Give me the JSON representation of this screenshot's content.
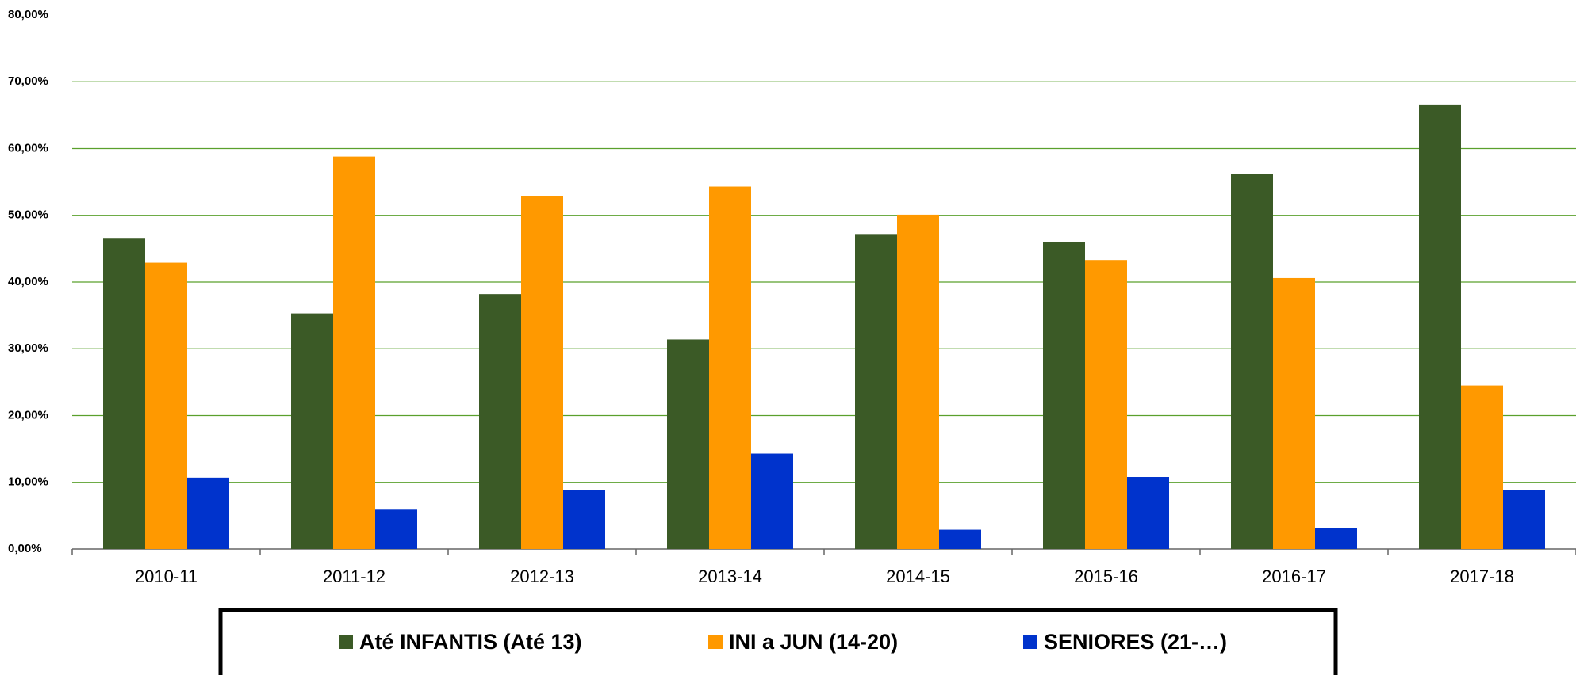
{
  "chart_data": {
    "type": "bar",
    "categories": [
      "2010-11",
      "2011-12",
      "2012-13",
      "2013-14",
      "2014-15",
      "2015-16",
      "2016-17",
      "2017-18"
    ],
    "series": [
      {
        "name": "Até INFANTIS (Até 13)",
        "color": "#3b5a26",
        "values": [
          46.5,
          35.3,
          38.2,
          31.4,
          47.2,
          46.0,
          56.2,
          66.6
        ]
      },
      {
        "name": "INI a JUN (14-20)",
        "color": "#ff9900",
        "values": [
          42.9,
          58.8,
          52.9,
          54.3,
          50.1,
          43.3,
          40.6,
          24.5
        ]
      },
      {
        "name": "SENIORES (21-…)",
        "color": "#0033cc",
        "values": [
          10.7,
          5.9,
          8.9,
          14.3,
          2.9,
          10.8,
          3.2,
          8.9
        ]
      }
    ],
    "ylim": [
      0,
      80
    ],
    "yticks": [
      {
        "value": 0,
        "label": "0,00%"
      },
      {
        "value": 10,
        "label": "10,00%"
      },
      {
        "value": 20,
        "label": "20,00%"
      },
      {
        "value": 30,
        "label": "30,00%"
      },
      {
        "value": 40,
        "label": "40,00%"
      },
      {
        "value": 50,
        "label": "50,00%"
      },
      {
        "value": 60,
        "label": "60,00%"
      },
      {
        "value": 70,
        "label": "70,00%"
      },
      {
        "value": 80,
        "label": "80,00%"
      }
    ],
    "grid": true,
    "legend": "bottom"
  }
}
